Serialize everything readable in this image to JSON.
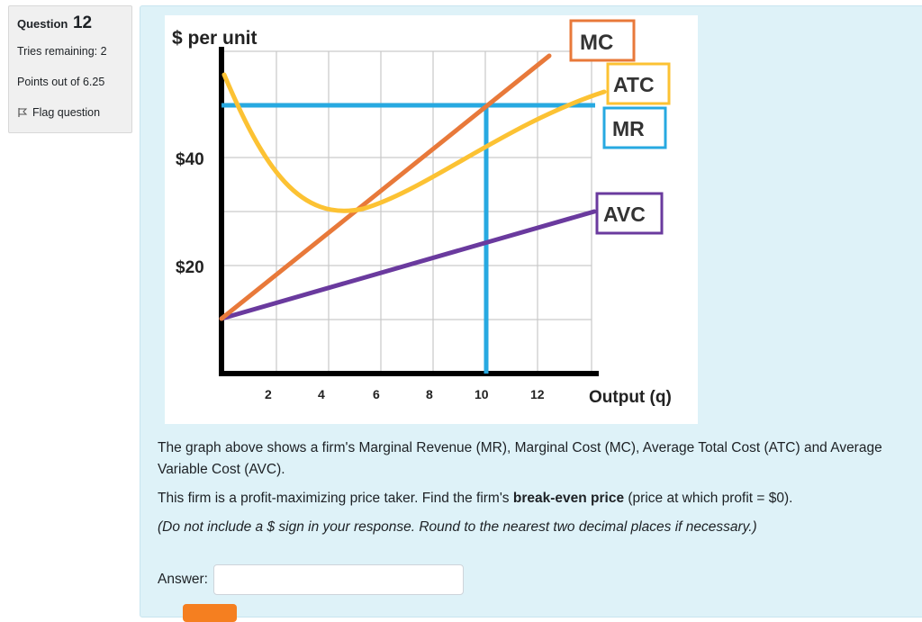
{
  "question": {
    "label": "Question",
    "number": "12",
    "tries": "Tries remaining: 2",
    "points": "Points out of 6.25",
    "flag_label": "Flag question"
  },
  "graph": {
    "y_title": "$ per unit",
    "x_title": "Output (q)",
    "y_ticks": [
      "$40",
      "$20"
    ],
    "x_ticks": [
      "2",
      "4",
      "6",
      "8",
      "10",
      "12"
    ],
    "curve_labels": {
      "mc": "MC",
      "atc": "ATC",
      "mr": "MR",
      "avc": "AVC"
    },
    "colors": {
      "mc": "#e8793a",
      "atc": "#fcc233",
      "mr": "#27a9e1",
      "avc": "#6a3a9e",
      "grid": "#c9c9c9",
      "axis": "#000000"
    }
  },
  "text": {
    "p1": "The graph above shows a firm's Marginal Revenue (MR), Marginal Cost (MC), Average Total Cost (ATC) and Average Variable Cost (AVC).",
    "p2_before": "This firm is a profit-maximizing price taker. Find the firm's ",
    "p2_bold": "break-even price",
    "p2_after": " (price at which profit = $0).",
    "p3": "(Do not include a $ sign in your response. Round to the nearest two decimal places if necessary.)"
  },
  "answer": {
    "label": "Answer:",
    "value": ""
  }
}
